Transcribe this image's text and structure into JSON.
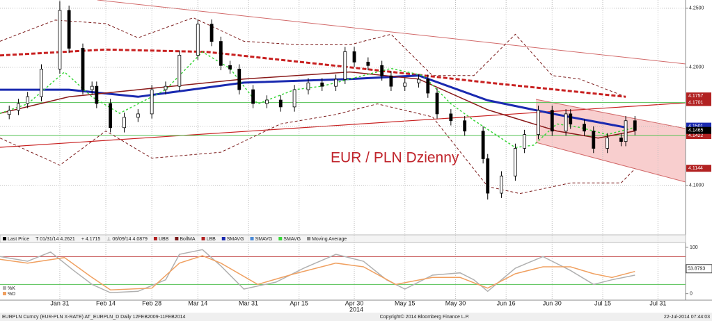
{
  "chart_data": {
    "type": "candlestick",
    "annotation": "EUR / PLN Dzienny",
    "xlim": [
      0,
      149
    ],
    "xticks": [
      {
        "value": 13,
        "label": "Jan 31"
      },
      {
        "value": 23,
        "label": "Feb 14"
      },
      {
        "value": 33,
        "label": "Feb 28"
      },
      {
        "value": 43,
        "label": "Mar 14"
      },
      {
        "value": 54,
        "label": "Mar 31"
      },
      {
        "value": 65,
        "label": "Apr 15"
      },
      {
        "value": 77,
        "label": "Apr 30"
      },
      {
        "value": 88,
        "label": "May 15"
      },
      {
        "value": 99,
        "label": "May 30"
      },
      {
        "value": 110,
        "label": "Jun 16"
      },
      {
        "value": 120,
        "label": "Jun 30"
      },
      {
        "value": 131,
        "label": "Jul 15"
      },
      {
        "value": 143,
        "label": "Jul 31"
      }
    ],
    "year_label": "2014",
    "ylim": [
      4.058,
      4.257
    ],
    "yticks": [
      {
        "value": 4.25,
        "label": "4.2500"
      },
      {
        "value": 4.2,
        "label": "4.2000"
      },
      {
        "value": 4.15,
        "label": ""
      },
      {
        "value": 4.1,
        "label": "4.1000"
      }
    ],
    "grid": true,
    "candles": {
      "x": [
        2,
        4,
        6,
        9,
        13,
        15,
        18,
        20,
        21,
        24,
        27,
        30,
        33,
        36,
        39,
        43,
        46,
        48,
        50,
        52,
        55,
        58,
        61,
        64,
        67,
        70,
        73,
        75,
        77,
        80,
        83,
        85,
        88,
        91,
        93,
        95,
        98,
        101,
        105,
        106,
        109,
        112,
        114,
        117,
        120,
        123,
        124,
        127,
        129,
        132,
        135,
        136,
        138
      ],
      "open": [
        4.16,
        4.1635,
        4.1693,
        4.1751,
        4.1985,
        4.2482,
        4.2161,
        4.181,
        4.1839,
        4.1693,
        4.1488,
        4.1576,
        4.1605,
        4.181,
        4.1839,
        4.2102,
        4.2365,
        4.2219,
        4.2015,
        4.1985,
        4.181,
        4.1693,
        4.1722,
        4.1664,
        4.181,
        4.1868,
        4.1839,
        4.1898,
        4.2132,
        4.2044,
        4.2015,
        4.1927,
        4.1839,
        4.1868,
        4.1898,
        4.1781,
        4.1605,
        4.1547,
        4.1459,
        4.1225,
        4.0933,
        4.1079,
        4.1313,
        4.143,
        4.1635,
        4.1459,
        4.1605,
        4.1518,
        4.1459,
        4.1313,
        4.1401,
        4.1371,
        4.1547
      ],
      "high": [
        4.1675,
        4.1733,
        4.1791,
        4.2025,
        4.256,
        4.2522,
        4.2201,
        4.1879,
        4.1879,
        4.1733,
        4.1616,
        4.1645,
        4.185,
        4.1879,
        4.2142,
        4.2405,
        4.2405,
        4.2259,
        4.2055,
        4.2025,
        4.185,
        4.1762,
        4.1762,
        4.185,
        4.1908,
        4.1908,
        4.1938,
        4.2172,
        4.2172,
        4.2084,
        4.2055,
        4.1967,
        4.1908,
        4.1938,
        4.1938,
        4.1821,
        4.1645,
        4.1587,
        4.1499,
        4.1265,
        4.1119,
        4.1353,
        4.147,
        4.1675,
        4.1675,
        4.1645,
        4.1645,
        4.1558,
        4.1499,
        4.1441,
        4.1441,
        4.1587,
        4.1587
      ],
      "low": [
        4.156,
        4.1595,
        4.1653,
        4.1711,
        4.1945,
        4.2121,
        4.177,
        4.177,
        4.1653,
        4.1448,
        4.1448,
        4.1536,
        4.1565,
        4.177,
        4.1799,
        4.2062,
        4.2179,
        4.1975,
        4.1945,
        4.177,
        4.1653,
        4.1653,
        4.1624,
        4.1624,
        4.177,
        4.1799,
        4.1799,
        4.1858,
        4.2004,
        4.1975,
        4.1887,
        4.1799,
        4.1799,
        4.1828,
        4.1741,
        4.1565,
        4.1507,
        4.1419,
        4.1185,
        4.0879,
        4.0893,
        4.1039,
        4.1273,
        4.139,
        4.1419,
        4.1419,
        4.1478,
        4.1419,
        4.1273,
        4.1273,
        4.1331,
        4.1331,
        4.1425
      ],
      "close": [
        4.1635,
        4.1693,
        4.1751,
        4.1985,
        4.2482,
        4.2161,
        4.181,
        4.1839,
        4.1693,
        4.1488,
        4.1576,
        4.1605,
        4.181,
        4.1839,
        4.2102,
        4.2365,
        4.2219,
        4.2015,
        4.1985,
        4.181,
        4.1693,
        4.1722,
        4.1664,
        4.181,
        4.1868,
        4.1839,
        4.1898,
        4.2132,
        4.2044,
        4.2015,
        4.1927,
        4.1839,
        4.1868,
        4.1898,
        4.1781,
        4.1605,
        4.1547,
        4.1459,
        4.1225,
        4.0933,
        4.1079,
        4.1313,
        4.143,
        4.1635,
        4.1459,
        4.1605,
        4.1518,
        4.1459,
        4.1313,
        4.1401,
        4.1371,
        4.1547,
        4.1465
      ],
      "up_color": "#ffffff",
      "down_color": "#000000"
    },
    "series": [
      {
        "name": "UBB",
        "color": "#7b1a1a",
        "dash": "4,3",
        "width": 1,
        "x": [
          0,
          12,
          23,
          30,
          42,
          53,
          65,
          76,
          85,
          94,
          103,
          112,
          120,
          126,
          136
        ],
        "values": [
          4.222,
          4.24,
          4.237,
          4.225,
          4.242,
          4.222,
          4.219,
          4.219,
          4.228,
          4.193,
          4.193,
          4.228,
          4.193,
          4.19,
          4.175
        ]
      },
      {
        "name": "LBB",
        "color": "#7b1a1a",
        "dash": "4,3",
        "width": 1,
        "x": [
          0,
          13,
          23,
          33,
          48,
          61,
          73,
          82,
          94,
          106,
          113,
          124,
          135,
          138
        ],
        "values": [
          4.14,
          4.117,
          4.146,
          4.123,
          4.128,
          4.152,
          4.16,
          4.169,
          4.158,
          4.099,
          4.093,
          4.102,
          4.102,
          4.114
        ]
      },
      {
        "name": "SMAVG",
        "color": "#c82020",
        "dash": "6,3",
        "width": 3,
        "x": [
          0,
          23,
          45,
          76,
          106,
          136
        ],
        "values": [
          4.21,
          4.215,
          4.213,
          4.2,
          4.187,
          4.175
        ]
      },
      {
        "name": "SMAVG",
        "color": "#1a2ab0",
        "dash": "",
        "width": 3,
        "x": [
          0,
          15,
          30,
          53,
          76,
          91,
          106,
          121,
          136
        ],
        "values": [
          4.181,
          4.181,
          4.175,
          4.187,
          4.19,
          4.193,
          4.172,
          4.16,
          4.149
        ]
      },
      {
        "name": "BollMA",
        "color": "#8a1a1a",
        "dash": "",
        "width": 1.5,
        "x": [
          0,
          15,
          30,
          53,
          76,
          91,
          106,
          121,
          130,
          138
        ],
        "values": [
          4.161,
          4.175,
          4.181,
          4.19,
          4.196,
          4.19,
          4.164,
          4.146,
          4.14,
          4.146
        ]
      },
      {
        "name": "SMAVG",
        "color": "#3ad63a",
        "dash": "3,3",
        "width": 1.5,
        "x": [
          0,
          6,
          14,
          20,
          26,
          36,
          44,
          50,
          56,
          64,
          70,
          76,
          85,
          92,
          98,
          103,
          112,
          116,
          121,
          126,
          132,
          138
        ],
        "values": [
          4.161,
          4.169,
          4.196,
          4.175,
          4.161,
          4.181,
          4.213,
          4.199,
          4.169,
          4.181,
          4.184,
          4.19,
          4.199,
          4.193,
          4.169,
          4.155,
          4.132,
          4.134,
          4.152,
          4.149,
          4.143,
          4.149
        ]
      }
    ],
    "hlines": {
      "values": [
        4.1701,
        4.1422
      ],
      "color": "#52c152"
    },
    "price_tags": {
      "values": [
        4.1757,
        4.1501,
        4.1701,
        4.1422,
        4.1465,
        4.1144
      ],
      "colors": [
        "#b22222",
        "#1a2ab0",
        "#b22222",
        "#b22222",
        "#000000",
        "#b22222"
      ]
    },
    "legend": [
      "Last Price",
      "T 01/31/14 4.2621",
      "+ 4.1715",
      "⊥ 06/09/14 4.0879",
      "UBB",
      "BollMA",
      "LBB",
      "SMAVG",
      "SMAVG",
      "SMAVG",
      "Moving Average"
    ],
    "legend_colors": [
      "#000000",
      null,
      null,
      null,
      "#b22222",
      "#7b1a1a",
      "#b22222",
      "#1a2ab0",
      "#4a8ad6",
      "#3ad63a",
      "#888888"
    ],
    "stoch": {
      "ylim": [
        -14,
        109
      ],
      "yticks": [
        0,
        100
      ],
      "levels": [
        80,
        20
      ],
      "level_colors": [
        "#c04040",
        "#52c152"
      ],
      "tag": 53.8793,
      "series": [
        {
          "name": "%K",
          "color": "#b0b0b0",
          "x": [
            0,
            6,
            11,
            16,
            20,
            24,
            30,
            36,
            39,
            44,
            48,
            53,
            60,
            66,
            73,
            79,
            84,
            88,
            94,
            100,
            103,
            106,
            112,
            118,
            124,
            129,
            133,
            138
          ],
          "values": [
            80,
            70,
            90,
            50,
            20,
            2,
            5,
            30,
            85,
            95,
            60,
            10,
            25,
            55,
            85,
            70,
            30,
            10,
            40,
            45,
            30,
            5,
            55,
            80,
            50,
            20,
            30,
            40
          ]
        },
        {
          "name": "%D",
          "color": "#f0a060",
          "x": [
            0,
            6,
            14,
            20,
            24,
            33,
            39,
            44,
            48,
            56,
            64,
            73,
            79,
            86,
            94,
            100,
            106,
            112,
            118,
            124,
            129,
            133,
            138
          ],
          "values": [
            74,
            66,
            78,
            35,
            8,
            12,
            66,
            82,
            66,
            20,
            43,
            66,
            58,
            20,
            35,
            35,
            12,
            43,
            58,
            58,
            43,
            35,
            48
          ]
        }
      ]
    },
    "footer_left": "EURPLN Curncy (EUR-PLN X-RATE) AT_EURPLN_D  Daily 12FEB2009-11FEB2014",
    "footer_center": "Copyright© 2014 Bloomberg Finance L.P.",
    "footer_right": "22-Jul-2014 07:44:03"
  }
}
